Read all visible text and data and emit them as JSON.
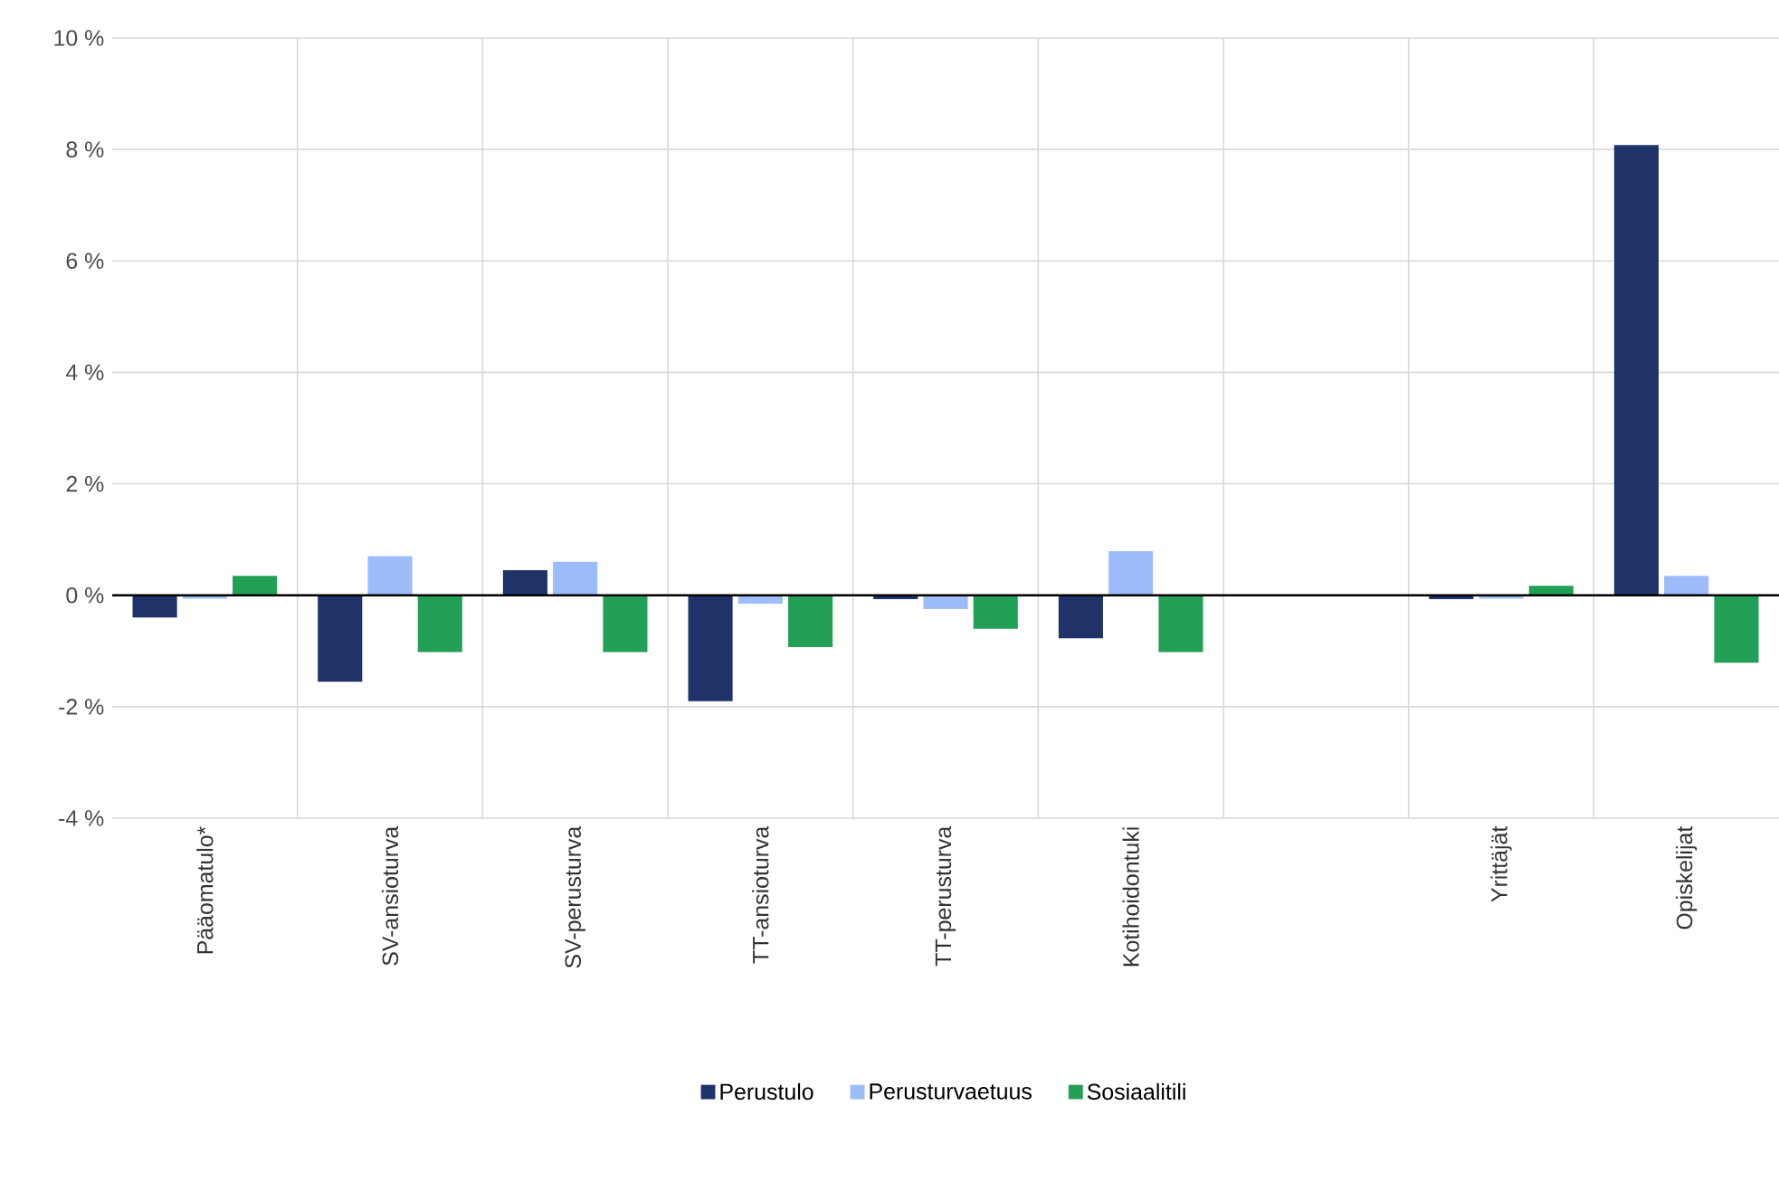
{
  "chart_data": {
    "type": "bar",
    "categories": [
      "Pääomatulo*",
      "SV-ansioturva",
      "SV-perusturva",
      "TT-ansioturva",
      "TT-perusturva",
      "Kotihoidontuki",
      null,
      "Yrittäjät",
      "Opiskelijat"
    ],
    "series": [
      {
        "name": "Perustulo",
        "color": "#1f3368",
        "values": [
          -0.4,
          -1.55,
          0.45,
          -1.9,
          -0.07,
          -0.77,
          null,
          -0.07,
          8.08
        ]
      },
      {
        "name": "Perusturvaetuus",
        "color": "#9cbcfa",
        "values": [
          -0.06,
          0.7,
          0.6,
          -0.15,
          -0.25,
          0.79,
          null,
          -0.06,
          0.35
        ]
      },
      {
        "name": "Sosiaalitili",
        "color": "#22a055",
        "values": [
          0.35,
          -1.02,
          -1.02,
          -0.93,
          -0.6,
          -1.02,
          null,
          0.17,
          -1.21
        ]
      }
    ],
    "ylim": [
      -4,
      10
    ],
    "yticks": [
      {
        "value": -4,
        "label": "-4 %"
      },
      {
        "value": -2,
        "label": "-2 %"
      },
      {
        "value": 0,
        "label": "0 %"
      },
      {
        "value": 2,
        "label": "2 %"
      },
      {
        "value": 4,
        "label": "4 %"
      },
      {
        "value": 6,
        "label": "6 %"
      },
      {
        "value": 8,
        "label": "8 %"
      },
      {
        "value": 10,
        "label": "10 %"
      }
    ],
    "grid": true,
    "legend": "bottom"
  }
}
